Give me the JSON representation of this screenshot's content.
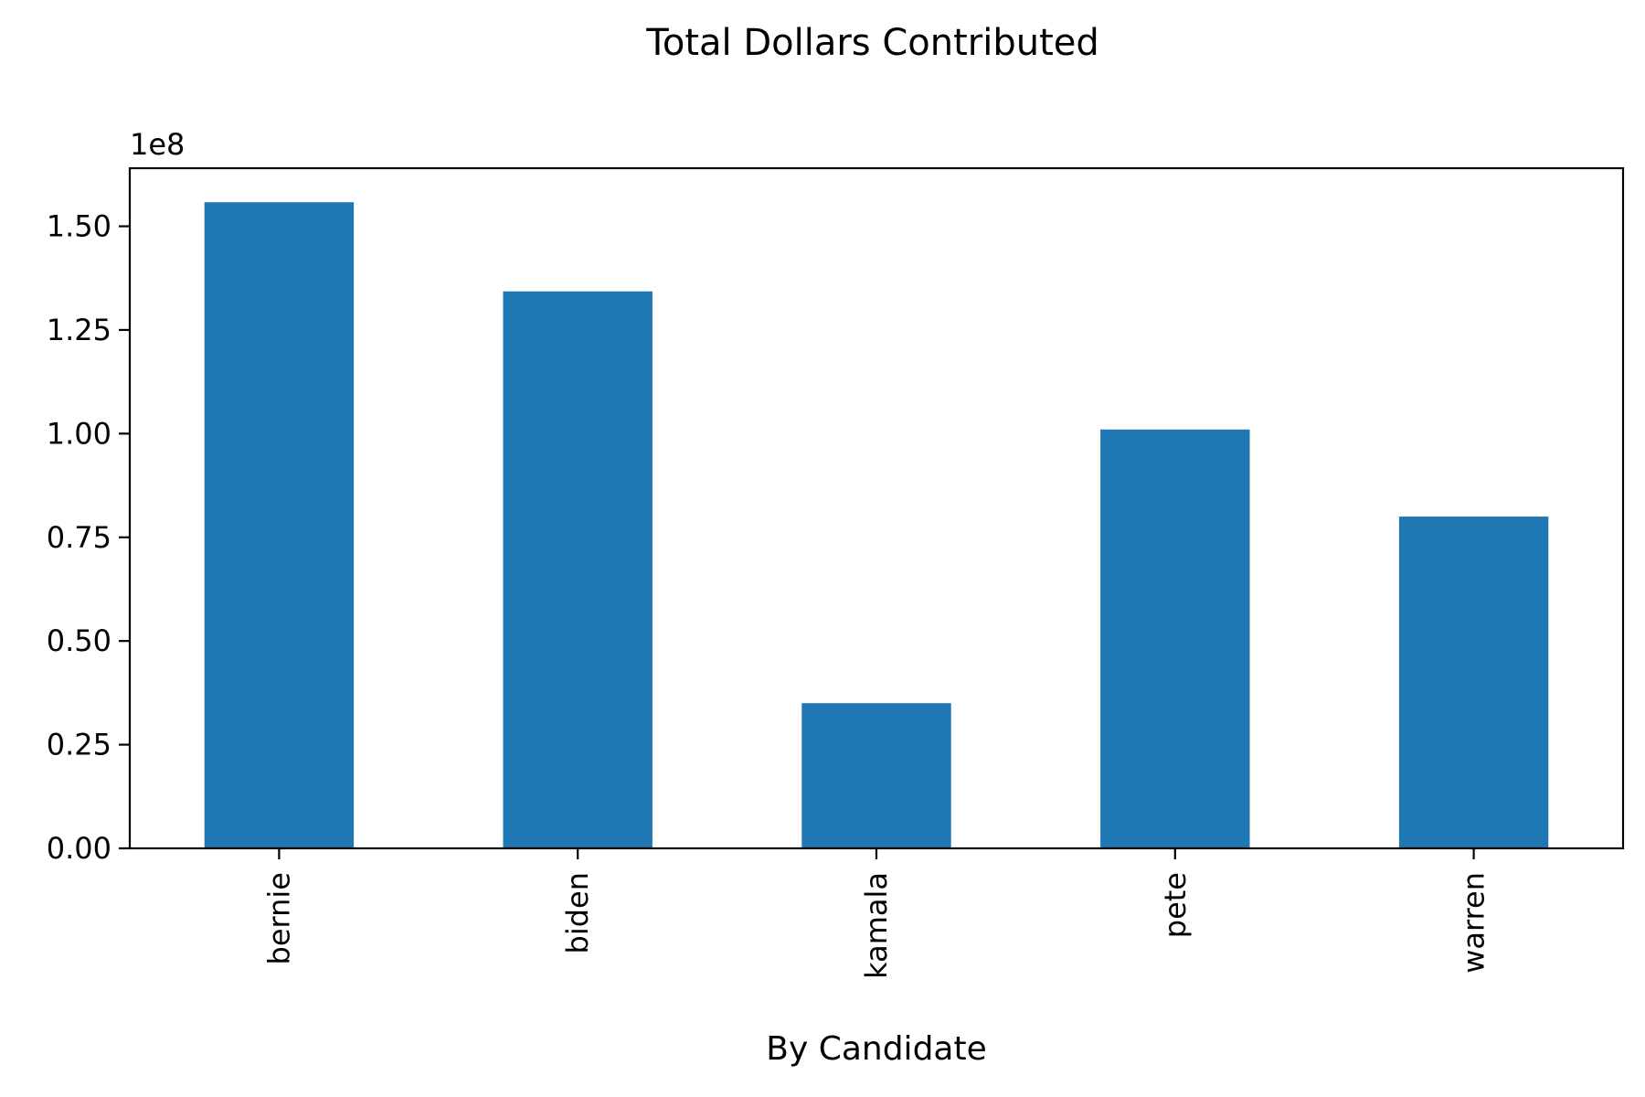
{
  "chart_data": {
    "type": "bar",
    "title": "Total Dollars Contributed",
    "xlabel": "By Candidate",
    "ylabel": "",
    "offset_text": "1e8",
    "categories": [
      "bernie",
      "biden",
      "kamala",
      "pete",
      "warren"
    ],
    "values": [
      155800000,
      134300000,
      35000000,
      101000000,
      80000000
    ],
    "ylim": [
      0,
      164000000
    ],
    "yticks": [
      0,
      25000000,
      50000000,
      75000000,
      100000000,
      125000000,
      150000000
    ],
    "ytick_labels": [
      "0.00",
      "0.25",
      "0.50",
      "0.75",
      "1.00",
      "1.25",
      "1.50"
    ],
    "bar_color": "#1f77b4",
    "grid": false,
    "legend": "none"
  }
}
